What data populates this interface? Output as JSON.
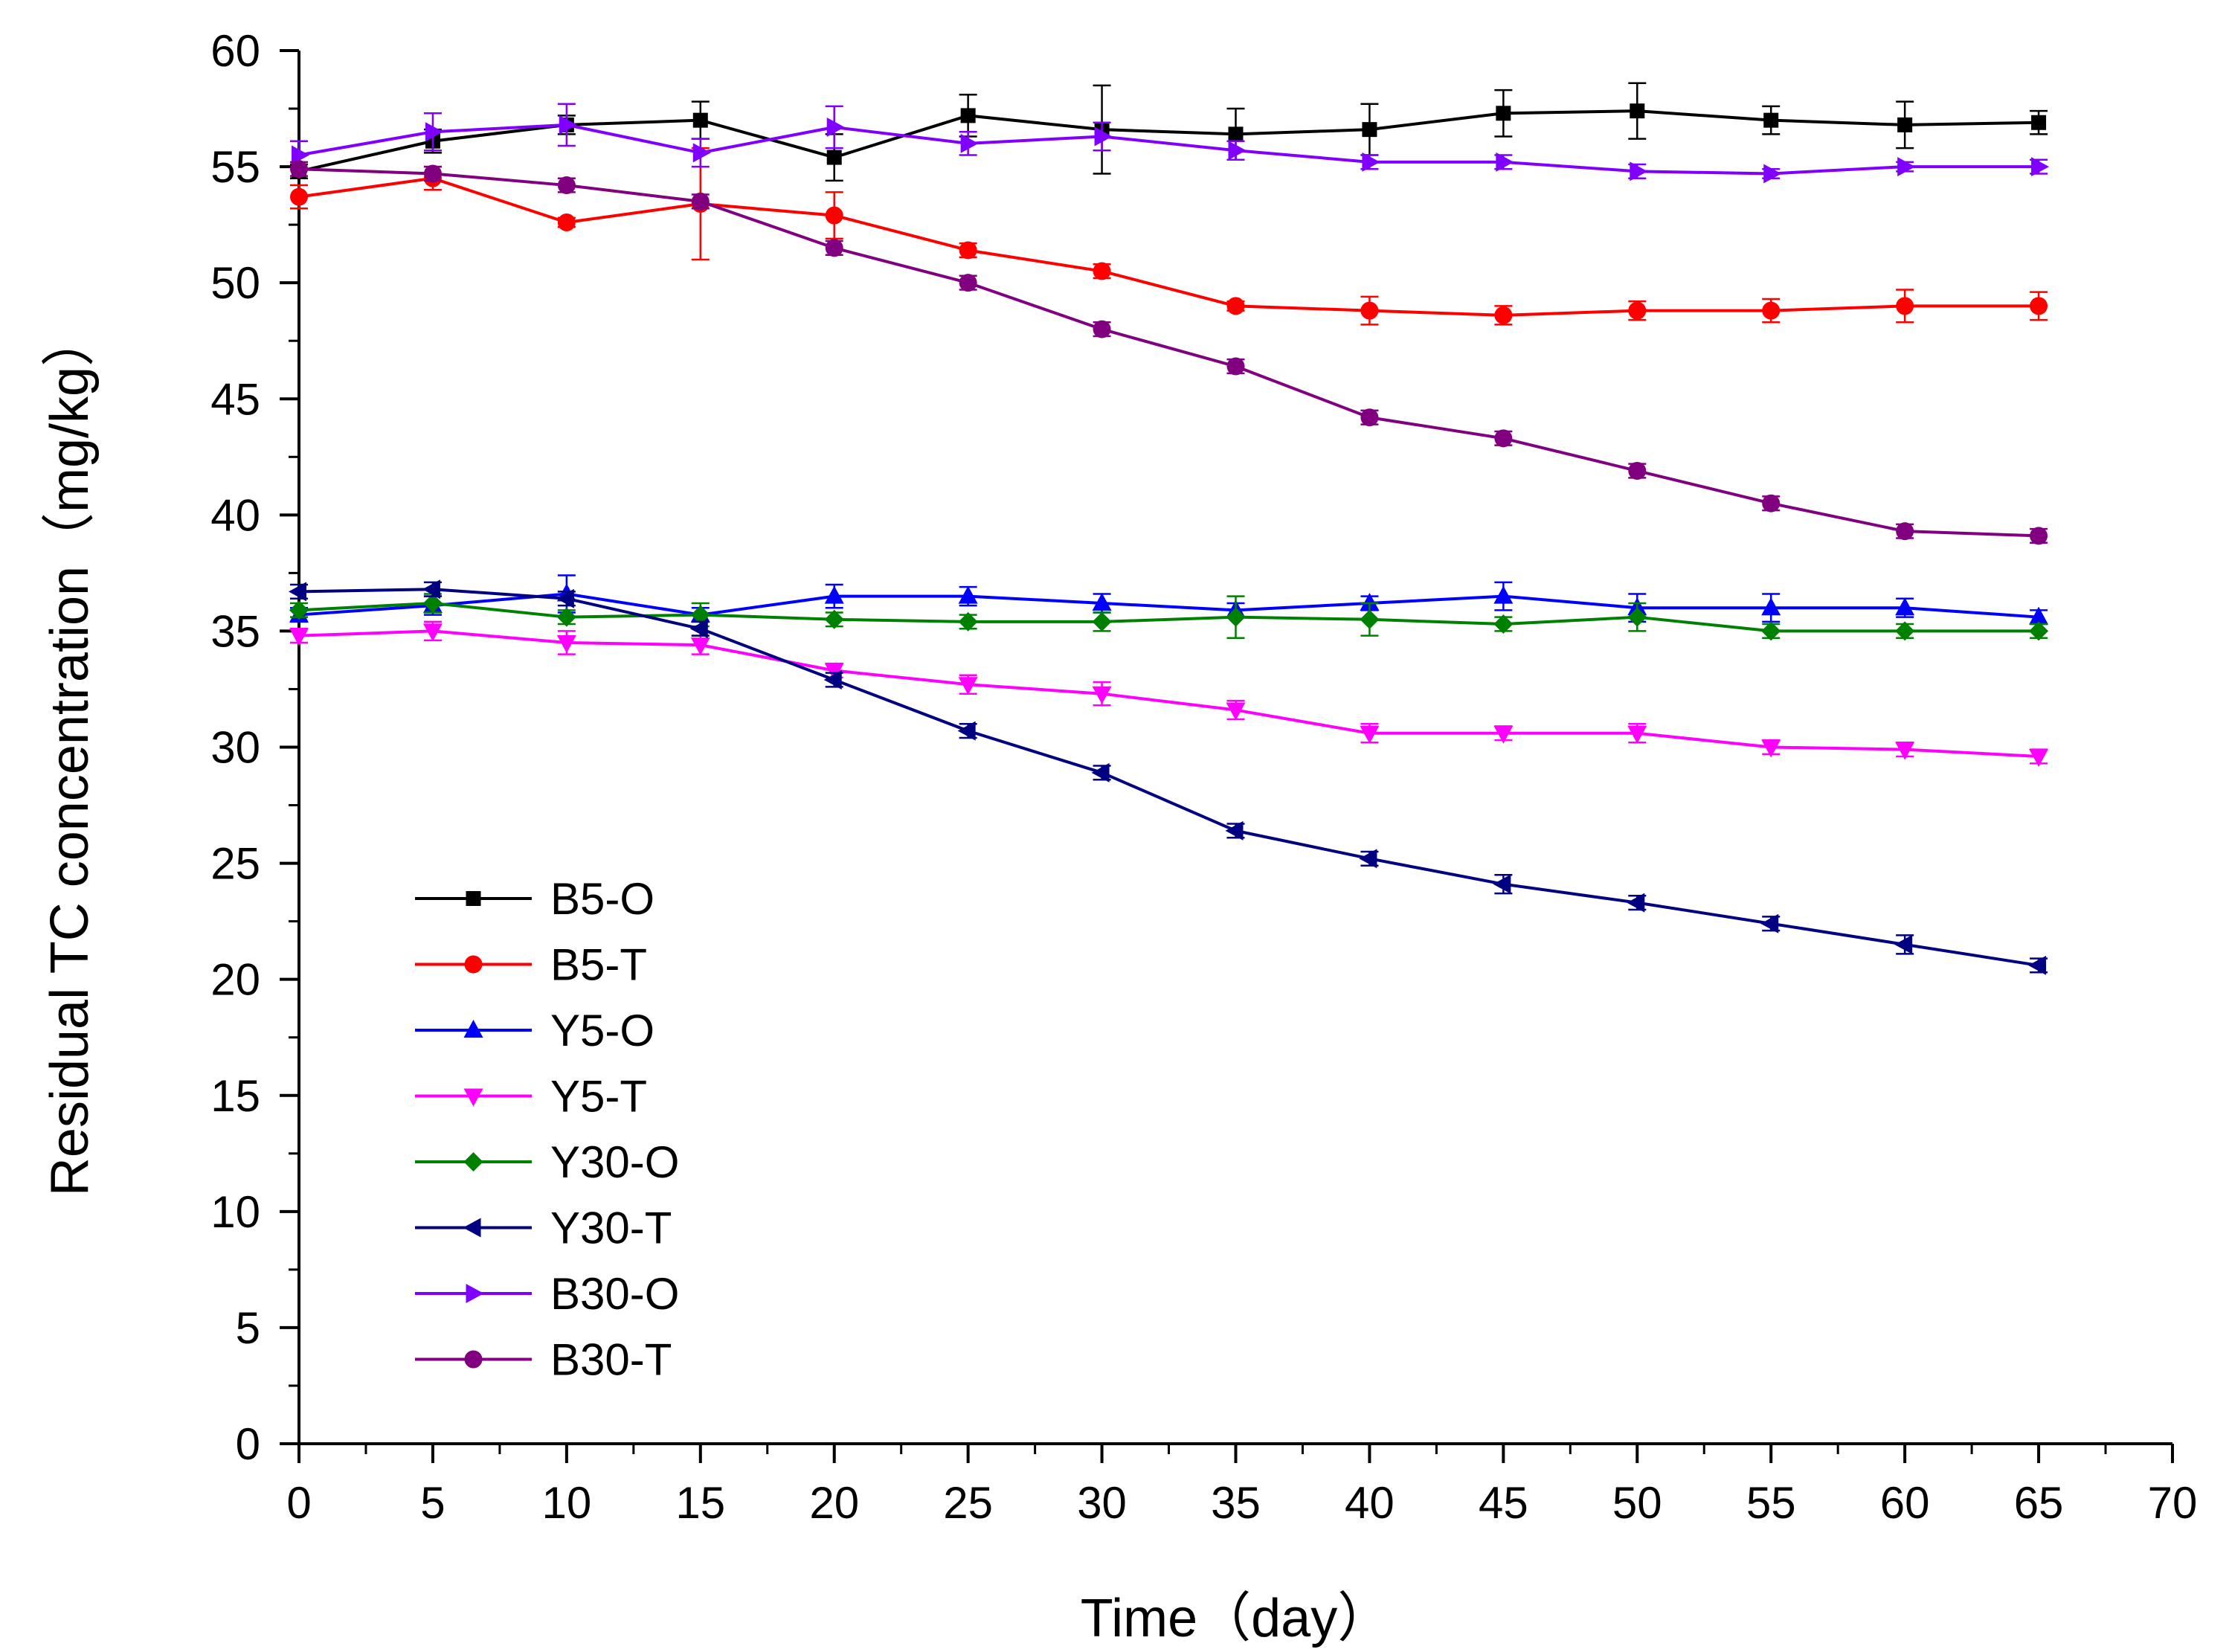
{
  "chart_data": {
    "type": "line",
    "xlabel": "Time（day）",
    "ylabel": "Residual TC concentration（mg/kg）",
    "xlim": [
      0,
      70
    ],
    "ylim": [
      0,
      60
    ],
    "x_ticks": [
      0,
      5,
      10,
      15,
      20,
      25,
      30,
      35,
      40,
      45,
      50,
      55,
      60,
      65,
      70
    ],
    "y_ticks": [
      0,
      5,
      10,
      15,
      20,
      25,
      30,
      35,
      40,
      45,
      50,
      55,
      60
    ],
    "grid": false,
    "legend_position": "bottom-left",
    "x": [
      0,
      5,
      10,
      15,
      20,
      25,
      30,
      35,
      40,
      45,
      50,
      55,
      60,
      65
    ],
    "series": [
      {
        "name": "B5-O",
        "color": "#000000",
        "marker": "square",
        "values": [
          54.8,
          56.1,
          56.8,
          57.0,
          55.4,
          57.2,
          56.6,
          56.4,
          56.6,
          57.3,
          57.4,
          57.0,
          56.8,
          56.9
        ],
        "errors": [
          0.3,
          0.5,
          0.4,
          0.8,
          1.0,
          0.9,
          1.9,
          1.1,
          1.1,
          1.0,
          1.2,
          0.6,
          1.0,
          0.5
        ]
      },
      {
        "name": "B5-T",
        "color": "#ff0000",
        "marker": "circle",
        "values": [
          53.7,
          54.5,
          52.6,
          53.4,
          52.9,
          51.4,
          50.5,
          49.0,
          48.8,
          48.6,
          48.8,
          48.8,
          49.0,
          49.0
        ],
        "errors": [
          0.5,
          0.5,
          0.2,
          2.4,
          1.0,
          0.3,
          0.3,
          0.2,
          0.6,
          0.4,
          0.4,
          0.5,
          0.7,
          0.6
        ]
      },
      {
        "name": "Y5-O",
        "color": "#0000ff",
        "marker": "triangle-up",
        "values": [
          35.7,
          36.1,
          36.6,
          35.7,
          36.5,
          36.5,
          36.2,
          35.9,
          36.2,
          36.5,
          36.0,
          36.0,
          36.0,
          35.6
        ],
        "errors": [
          0.3,
          0.4,
          0.8,
          0.3,
          0.5,
          0.4,
          0.4,
          0.3,
          0.3,
          0.6,
          0.6,
          0.6,
          0.4,
          0.3
        ]
      },
      {
        "name": "Y5-T",
        "color": "#ff00ff",
        "marker": "triangle-down",
        "values": [
          34.8,
          35.0,
          34.5,
          34.4,
          33.3,
          32.7,
          32.3,
          31.6,
          30.6,
          30.6,
          30.6,
          30.0,
          29.9,
          29.6
        ],
        "errors": [
          0.3,
          0.4,
          0.5,
          0.4,
          0.3,
          0.4,
          0.5,
          0.4,
          0.4,
          0.3,
          0.4,
          0.3,
          0.3,
          0.3
        ]
      },
      {
        "name": "Y30-O",
        "color": "#008000",
        "marker": "diamond",
        "values": [
          35.9,
          36.2,
          35.6,
          35.7,
          35.5,
          35.4,
          35.4,
          35.6,
          35.5,
          35.3,
          35.6,
          35.0,
          35.0,
          35.0
        ],
        "errors": [
          0.3,
          0.4,
          0.3,
          0.5,
          0.3,
          0.3,
          0.4,
          0.9,
          0.7,
          0.3,
          0.6,
          0.3,
          0.3,
          0.3
        ]
      },
      {
        "name": "Y30-T",
        "color": "#000080",
        "marker": "triangle-left",
        "values": [
          36.7,
          36.8,
          36.4,
          35.1,
          32.9,
          30.7,
          28.9,
          26.4,
          25.2,
          24.1,
          23.3,
          22.4,
          21.5,
          20.6
        ],
        "errors": [
          0.3,
          0.3,
          0.3,
          0.3,
          0.3,
          0.3,
          0.3,
          0.3,
          0.3,
          0.4,
          0.3,
          0.3,
          0.4,
          0.3
        ]
      },
      {
        "name": "B30-O",
        "color": "#8000ff",
        "marker": "triangle-right",
        "values": [
          55.5,
          56.5,
          56.8,
          55.6,
          56.7,
          56.0,
          56.3,
          55.7,
          55.2,
          55.2,
          54.8,
          54.7,
          55.0,
          55.0
        ],
        "errors": [
          0.6,
          0.8,
          0.9,
          0.6,
          0.9,
          0.5,
          0.6,
          0.4,
          0.3,
          0.3,
          0.3,
          0.2,
          0.2,
          0.3
        ]
      },
      {
        "name": "B30-T",
        "color": "#800080",
        "marker": "circle",
        "values": [
          54.9,
          54.7,
          54.2,
          53.5,
          51.5,
          50.0,
          48.0,
          46.4,
          44.2,
          43.3,
          41.9,
          40.5,
          39.3,
          39.1
        ],
        "errors": [
          0.3,
          0.3,
          0.3,
          0.3,
          0.3,
          0.3,
          0.3,
          0.3,
          0.3,
          0.3,
          0.3,
          0.3,
          0.3,
          0.3
        ]
      }
    ]
  }
}
